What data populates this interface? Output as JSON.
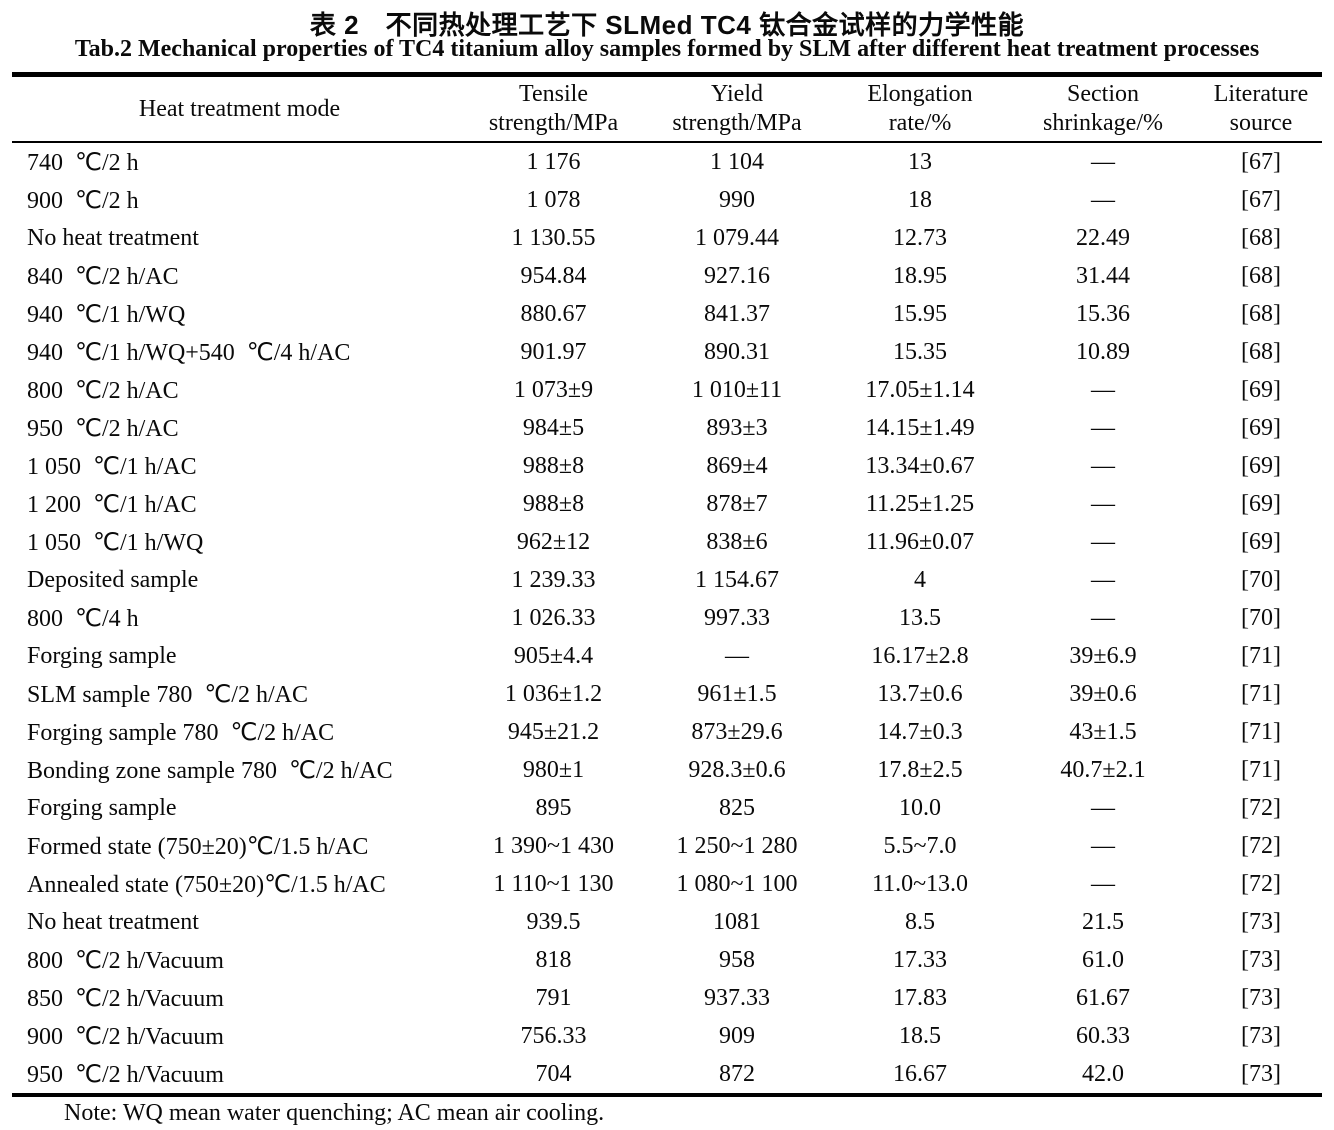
{
  "caption": {
    "title_cn": "表 2　不同热处理工艺下 SLMed TC4 钛合金试样的力学性能",
    "title_en": "Tab.2 Mechanical properties of TC4 titanium alloy samples formed by SLM after different heat treatment processes"
  },
  "note": "Note: WQ mean water quenching; AC mean air cooling.",
  "chart_data": {
    "type": "table",
    "title": "Tab.2 Mechanical properties of TC4 titanium alloy samples formed by SLM after different heat treatment processes",
    "headers": [
      {
        "line1": "Heat treatment mode",
        "line2": ""
      },
      {
        "line1": "Tensile",
        "line2": "strength/MPa"
      },
      {
        "line1": "Yield",
        "line2": "strength/MPa"
      },
      {
        "line1": "Elongation",
        "line2": "rate/%"
      },
      {
        "line1": "Section",
        "line2": "shrinkage/%"
      },
      {
        "line1": "Literature",
        "line2": "source"
      }
    ],
    "rows": [
      [
        "740  ℃/2 h",
        "1 176",
        "1 104",
        "13",
        "—",
        "[67]"
      ],
      [
        "900  ℃/2 h",
        "1 078",
        "990",
        "18",
        "—",
        "[67]"
      ],
      [
        "No heat treatment",
        "1 130.55",
        "1 079.44",
        "12.73",
        "22.49",
        "[68]"
      ],
      [
        "840  ℃/2 h/AC",
        "954.84",
        "927.16",
        "18.95",
        "31.44",
        "[68]"
      ],
      [
        "940  ℃/1 h/WQ",
        "880.67",
        "841.37",
        "15.95",
        "15.36",
        "[68]"
      ],
      [
        "940  ℃/1 h/WQ+540  ℃/4 h/AC",
        "901.97",
        "890.31",
        "15.35",
        "10.89",
        "[68]"
      ],
      [
        "800  ℃/2 h/AC",
        "1 073±9",
        "1 010±11",
        "17.05±1.14",
        "—",
        "[69]"
      ],
      [
        "950  ℃/2 h/AC",
        "984±5",
        "893±3",
        "14.15±1.49",
        "—",
        "[69]"
      ],
      [
        "1 050  ℃/1 h/AC",
        "988±8",
        "869±4",
        "13.34±0.67",
        "—",
        "[69]"
      ],
      [
        "1 200  ℃/1 h/AC",
        "988±8",
        "878±7",
        "11.25±1.25",
        "—",
        "[69]"
      ],
      [
        "1 050  ℃/1 h/WQ",
        "962±12",
        "838±6",
        "11.96±0.07",
        "—",
        "[69]"
      ],
      [
        "Deposited sample",
        "1 239.33",
        "1 154.67",
        "4",
        "—",
        "[70]"
      ],
      [
        "800  ℃/4 h",
        "1 026.33",
        "997.33",
        "13.5",
        "—",
        "[70]"
      ],
      [
        "Forging sample",
        "905±4.4",
        "—",
        "16.17±2.8",
        "39±6.9",
        "[71]"
      ],
      [
        "SLM sample 780  ℃/2 h/AC",
        "1 036±1.2",
        "961±1.5",
        "13.7±0.6",
        "39±0.6",
        "[71]"
      ],
      [
        "Forging sample 780  ℃/2 h/AC",
        "945±21.2",
        "873±29.6",
        "14.7±0.3",
        "43±1.5",
        "[71]"
      ],
      [
        "Bonding zone sample 780  ℃/2 h/AC",
        "980±1",
        "928.3±0.6",
        "17.8±2.5",
        "40.7±2.1",
        "[71]"
      ],
      [
        "Forging sample",
        "895",
        "825",
        "10.0",
        "—",
        "[72]"
      ],
      [
        "Formed state (750±20)℃/1.5 h/AC",
        "1 390~1 430",
        "1 250~1 280",
        "5.5~7.0",
        "—",
        "[72]"
      ],
      [
        "Annealed state (750±20)℃/1.5 h/AC",
        "1 110~1 130",
        "1 080~1 100",
        "11.0~13.0",
        "—",
        "[72]"
      ],
      [
        "No heat treatment",
        "939.5",
        "1081",
        "8.5",
        "21.5",
        "[73]"
      ],
      [
        "800  ℃/2 h/Vacuum",
        "818",
        "958",
        "17.33",
        "61.0",
        "[73]"
      ],
      [
        "850  ℃/2 h/Vacuum",
        "791",
        "937.33",
        "17.83",
        "61.67",
        "[73]"
      ],
      [
        "900  ℃/2 h/Vacuum",
        "756.33",
        "909",
        "18.5",
        "60.33",
        "[73]"
      ],
      [
        "950  ℃/2 h/Vacuum",
        "704",
        "872",
        "16.67",
        "42.0",
        "[73]"
      ]
    ],
    "column_names_semantic": [
      "heat-treatment-mode",
      "tensile-strength",
      "yield-strength",
      "elongation-rate",
      "section-shrinkage",
      "literature-source"
    ]
  }
}
